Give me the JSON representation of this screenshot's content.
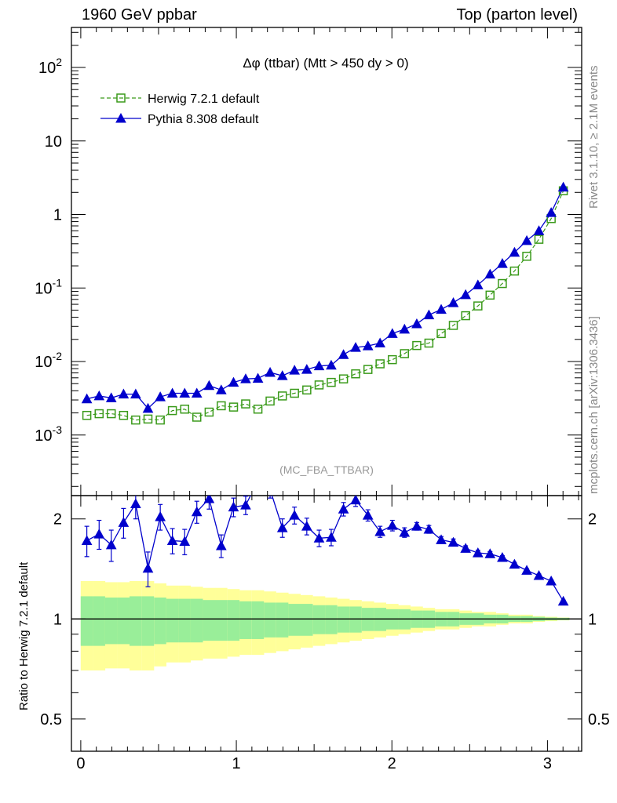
{
  "header": {
    "left": "1960 GeV ppbar",
    "right": "Top (parton level)"
  },
  "side_labels": {
    "rivet": "Rivet 3.1.10, ≥ 2.1M events",
    "mcplots": "mcplots.cern.ch [arXiv:1306.3436]"
  },
  "colors": {
    "herwig": "#3a9a1a",
    "pythia": "#0000cc",
    "band_inner": "#99ee99",
    "band_outer": "#ffff99"
  },
  "chart_data": [
    {
      "type": "line",
      "title": "Δφ (ttbar) (Mtt > 450 dy > 0)",
      "annotation": "(MC_FBA_TTBAR)",
      "xlabel": "",
      "ylabel": "",
      "yscale": "log",
      "ylim": [
        0.00015,
        350
      ],
      "xlim": [
        -0.06,
        3.22
      ],
      "y_ticks": [
        "10^-3",
        "10^-2",
        "10^-1",
        "1",
        "10",
        "10^2"
      ],
      "legend_position": "top-left",
      "x": [
        0.039,
        0.118,
        0.196,
        0.275,
        0.353,
        0.432,
        0.511,
        0.589,
        0.668,
        0.746,
        0.825,
        0.903,
        0.982,
        1.06,
        1.139,
        1.217,
        1.296,
        1.374,
        1.453,
        1.532,
        1.61,
        1.689,
        1.767,
        1.846,
        1.924,
        2.003,
        2.081,
        2.16,
        2.238,
        2.317,
        2.395,
        2.474,
        2.553,
        2.631,
        2.71,
        2.788,
        2.867,
        2.945,
        3.024,
        3.102
      ],
      "series": [
        {
          "name": "Herwig 7.2.1 default",
          "marker": "open-square",
          "line": "dashed",
          "values": [
            0.00185,
            0.00195,
            0.00195,
            0.00185,
            0.0016,
            0.00165,
            0.0016,
            0.00215,
            0.00225,
            0.00175,
            0.00205,
            0.0025,
            0.0024,
            0.00265,
            0.00225,
            0.0029,
            0.0034,
            0.0037,
            0.0041,
            0.0048,
            0.0052,
            0.0058,
            0.0068,
            0.0078,
            0.0093,
            0.0106,
            0.0128,
            0.0165,
            0.0178,
            0.024,
            0.031,
            0.042,
            0.057,
            0.08,
            0.115,
            0.17,
            0.27,
            0.46,
            0.88,
            2.1
          ]
        },
        {
          "name": "Pythia 8.308 default",
          "marker": "filled-triangle",
          "line": "solid",
          "values": [
            0.0031,
            0.0034,
            0.0032,
            0.0036,
            0.0036,
            0.0023,
            0.0033,
            0.0037,
            0.0037,
            0.0037,
            0.0047,
            0.0041,
            0.0052,
            0.0058,
            0.0059,
            0.0071,
            0.0064,
            0.0076,
            0.0078,
            0.0087,
            0.0089,
            0.0124,
            0.0155,
            0.0163,
            0.0178,
            0.024,
            0.0275,
            0.0325,
            0.043,
            0.051,
            0.063,
            0.081,
            0.11,
            0.154,
            0.215,
            0.305,
            0.44,
            0.6,
            1.06,
            2.35
          ]
        }
      ]
    },
    {
      "type": "line",
      "ylabel": "Ratio to Herwig 7.2.1 default",
      "xlabel": "",
      "yscale": "log",
      "ylim": [
        0.4,
        2.35
      ],
      "xlim": [
        -0.06,
        3.22
      ],
      "y_ticks": [
        "0.5",
        "1",
        "2"
      ],
      "x_ticks": [
        "0",
        "1",
        "2",
        "3"
      ],
      "reference_line": 1,
      "ratio": [
        1.72,
        1.8,
        1.67,
        1.95,
        2.22,
        1.42,
        2.03,
        1.72,
        1.71,
        2.1,
        2.3,
        1.66,
        2.17,
        2.2,
        2.6,
        2.45,
        1.88,
        2.05,
        1.9,
        1.75,
        1.76,
        2.14,
        2.28,
        2.05,
        1.83,
        1.91,
        1.82,
        1.9,
        1.86,
        1.73,
        1.7,
        1.63,
        1.58,
        1.57,
        1.53,
        1.46,
        1.4,
        1.35,
        1.3,
        1.13
      ],
      "ratio_err": [
        0.18,
        0.18,
        0.18,
        0.2,
        0.22,
        0.17,
        0.18,
        0.15,
        0.15,
        0.16,
        0.16,
        0.13,
        0.14,
        0.14,
        0.15,
        0.14,
        0.12,
        0.12,
        0.11,
        0.1,
        0.1,
        0.1,
        0.1,
        0.08,
        0.07,
        0.07,
        0.06,
        0.05,
        0.05,
        0.04,
        0.04,
        0.03,
        0.03,
        0.025,
        0.02,
        0.02,
        0.015,
        0.015,
        0.012,
        0.01
      ],
      "band_inner_halfwidth": [
        0.17,
        0.17,
        0.16,
        0.16,
        0.17,
        0.17,
        0.16,
        0.15,
        0.15,
        0.15,
        0.14,
        0.14,
        0.14,
        0.13,
        0.13,
        0.12,
        0.12,
        0.11,
        0.11,
        0.1,
        0.1,
        0.09,
        0.09,
        0.08,
        0.08,
        0.07,
        0.07,
        0.06,
        0.06,
        0.05,
        0.05,
        0.04,
        0.04,
        0.03,
        0.03,
        0.02,
        0.02,
        0.015,
        0.01,
        0.008
      ],
      "band_outer_halfwidth": [
        0.3,
        0.3,
        0.29,
        0.29,
        0.3,
        0.3,
        0.28,
        0.26,
        0.26,
        0.25,
        0.24,
        0.24,
        0.23,
        0.22,
        0.22,
        0.21,
        0.2,
        0.19,
        0.18,
        0.17,
        0.16,
        0.15,
        0.14,
        0.13,
        0.12,
        0.11,
        0.1,
        0.09,
        0.08,
        0.07,
        0.07,
        0.06,
        0.05,
        0.05,
        0.04,
        0.03,
        0.03,
        0.02,
        0.015,
        0.01
      ]
    }
  ]
}
